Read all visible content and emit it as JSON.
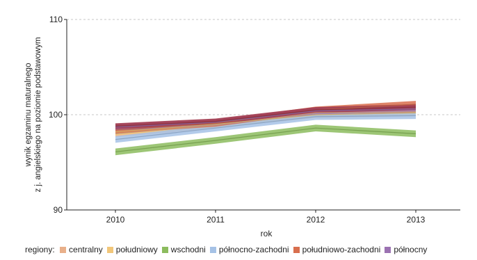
{
  "chart_data": {
    "type": "line",
    "ylabel_lines": [
      "wynik egzaminu maturalnego",
      "z j. angielskiego na poziomie podstawowym"
    ],
    "xlabel": "rok",
    "x": [
      2010,
      2011,
      2012,
      2013
    ],
    "ylim": [
      90,
      110
    ],
    "yticks": [
      90,
      100,
      110
    ],
    "grid": "horizontal",
    "legend_title": "regiony:",
    "legend_position": "bottom",
    "series": [
      {
        "name": "centralny",
        "color": "#e9b08a",
        "values": [
          98.0,
          98.9,
          100.2,
          100.3
        ],
        "band": 0.35
      },
      {
        "name": "południowy",
        "color": "#f2c77a",
        "values": [
          98.2,
          99.0,
          100.0,
          100.2
        ],
        "band": 0.35
      },
      {
        "name": "wschodni",
        "color": "#8cbc5e",
        "values": [
          96.1,
          97.3,
          98.6,
          98.0
        ],
        "band": 0.35
      },
      {
        "name": "północno-zachodni",
        "color": "#a6c2e6",
        "values": [
          97.4,
          98.6,
          99.8,
          99.9
        ],
        "band": 0.35
      },
      {
        "name": "południowo-zachodni",
        "color": "#d86f4e",
        "values": [
          98.4,
          99.1,
          100.5,
          101.1
        ],
        "band": 0.35
      },
      {
        "name": "północny",
        "color": "#9b72b2",
        "values": [
          98.7,
          99.2,
          100.4,
          100.6
        ],
        "band": 0.35
      },
      {
        "name": "",
        "color": "#a33a4a",
        "values": [
          98.8,
          99.3,
          100.5,
          100.8
        ],
        "band": 0.3
      }
    ]
  }
}
